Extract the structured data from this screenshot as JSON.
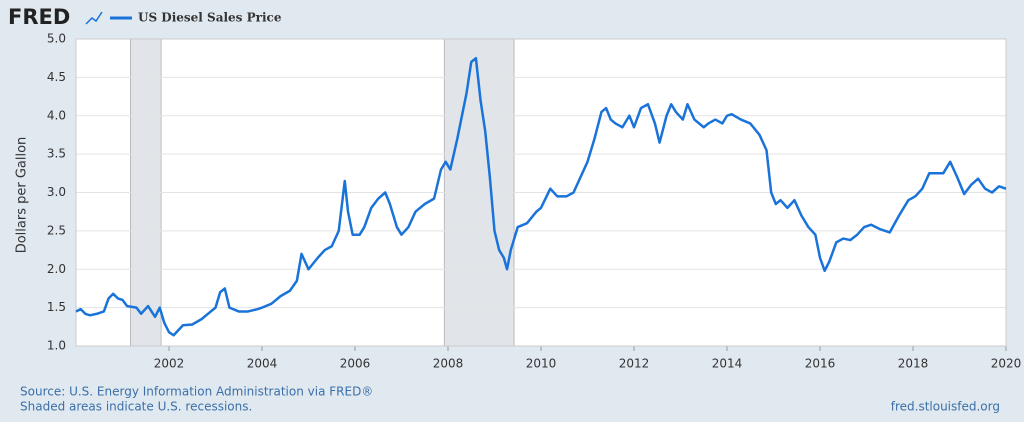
{
  "brand": "FRED",
  "chart_data": {
    "type": "line",
    "y_label": "Dollars per Gallon",
    "series": [
      {
        "name": "US Diesel Sales Price",
        "color": "#1a73d9",
        "x": [
          2000.0,
          2000.1,
          2000.2,
          2000.3,
          2000.45,
          2000.6,
          2000.7,
          2000.8,
          2000.9,
          2001.0,
          2001.1,
          2001.3,
          2001.4,
          2001.55,
          2001.7,
          2001.8,
          2001.9,
          2002.0,
          2002.1,
          2002.3,
          2002.5,
          2002.7,
          2002.9,
          2003.0,
          2003.1,
          2003.2,
          2003.3,
          2003.5,
          2003.7,
          2003.9,
          2004.0,
          2004.2,
          2004.4,
          2004.6,
          2004.75,
          2004.85,
          2005.0,
          2005.2,
          2005.35,
          2005.5,
          2005.65,
          2005.72,
          2005.78,
          2005.85,
          2005.95,
          2006.1,
          2006.2,
          2006.35,
          2006.5,
          2006.65,
          2006.75,
          2006.9,
          2007.0,
          2007.15,
          2007.3,
          2007.5,
          2007.7,
          2007.85,
          2007.95,
          2008.05,
          2008.2,
          2008.3,
          2008.4,
          2008.5,
          2008.6,
          2008.7,
          2008.8,
          2008.9,
          2009.0,
          2009.1,
          2009.2,
          2009.27,
          2009.35,
          2009.5,
          2009.7,
          2009.9,
          2010.0,
          2010.2,
          2010.35,
          2010.55,
          2010.7,
          2010.85,
          2011.0,
          2011.15,
          2011.3,
          2011.4,
          2011.5,
          2011.6,
          2011.75,
          2011.9,
          2012.0,
          2012.15,
          2012.3,
          2012.45,
          2012.55,
          2012.7,
          2012.8,
          2012.9,
          2013.05,
          2013.15,
          2013.3,
          2013.5,
          2013.6,
          2013.75,
          2013.9,
          2014.0,
          2014.1,
          2014.3,
          2014.5,
          2014.7,
          2014.85,
          2014.95,
          2015.05,
          2015.15,
          2015.3,
          2015.45,
          2015.6,
          2015.75,
          2015.9,
          2016.0,
          2016.1,
          2016.2,
          2016.35,
          2016.5,
          2016.65,
          2016.8,
          2016.95,
          2017.1,
          2017.3,
          2017.5,
          2017.7,
          2017.9,
          2018.05,
          2018.2,
          2018.35,
          2018.5,
          2018.65,
          2018.8,
          2018.95,
          2019.1,
          2019.25,
          2019.4,
          2019.55,
          2019.7,
          2019.85,
          2020.0
        ],
        "values": [
          1.45,
          1.48,
          1.42,
          1.4,
          1.42,
          1.45,
          1.62,
          1.68,
          1.62,
          1.6,
          1.52,
          1.5,
          1.42,
          1.52,
          1.38,
          1.5,
          1.3,
          1.18,
          1.14,
          1.27,
          1.28,
          1.35,
          1.45,
          1.5,
          1.7,
          1.75,
          1.5,
          1.45,
          1.45,
          1.48,
          1.5,
          1.55,
          1.65,
          1.72,
          1.85,
          2.2,
          2.0,
          2.15,
          2.25,
          2.3,
          2.5,
          2.85,
          3.15,
          2.75,
          2.45,
          2.45,
          2.55,
          2.8,
          2.92,
          3.0,
          2.85,
          2.55,
          2.45,
          2.55,
          2.75,
          2.85,
          2.92,
          3.3,
          3.4,
          3.3,
          3.7,
          4.0,
          4.3,
          4.7,
          4.75,
          4.2,
          3.8,
          3.2,
          2.5,
          2.25,
          2.15,
          2.0,
          2.25,
          2.55,
          2.6,
          2.75,
          2.8,
          3.05,
          2.95,
          2.95,
          3.0,
          3.2,
          3.4,
          3.7,
          4.05,
          4.1,
          3.95,
          3.9,
          3.85,
          4.0,
          3.85,
          4.1,
          4.15,
          3.9,
          3.65,
          4.0,
          4.15,
          4.05,
          3.95,
          4.15,
          3.95,
          3.85,
          3.9,
          3.95,
          3.9,
          4.0,
          4.02,
          3.95,
          3.9,
          3.75,
          3.55,
          3.0,
          2.85,
          2.9,
          2.8,
          2.9,
          2.7,
          2.55,
          2.45,
          2.15,
          1.98,
          2.1,
          2.35,
          2.4,
          2.38,
          2.45,
          2.55,
          2.58,
          2.52,
          2.48,
          2.7,
          2.9,
          2.95,
          3.05,
          3.25,
          3.25,
          3.25,
          3.4,
          3.2,
          2.98,
          3.1,
          3.18,
          3.05,
          3.0,
          3.08,
          3.05
        ]
      }
    ],
    "recessions": [
      [
        2001.17,
        2001.83
      ],
      [
        2007.92,
        2009.42
      ]
    ],
    "xlim": [
      2000,
      2020
    ],
    "xticks": [
      2002,
      2004,
      2006,
      2008,
      2010,
      2012,
      2014,
      2016,
      2018,
      2020
    ],
    "ylim": [
      1,
      5
    ],
    "yticks": [
      {
        "value": 1,
        "label": "1.0"
      },
      1.5,
      {
        "value": 2,
        "label": "2.0"
      },
      2.5,
      {
        "value": 3,
        "label": "3.0"
      },
      3.5,
      {
        "value": 4,
        "label": "4.0"
      },
      4.5,
      {
        "value": 5,
        "label": "5.0"
      }
    ],
    "grid": true
  },
  "footer": {
    "source": "Source: U.S. Energy Information Administration via FRED®",
    "note": "Shaded areas indicate U.S. recessions.",
    "site": "fred.stlouisfed.org"
  }
}
